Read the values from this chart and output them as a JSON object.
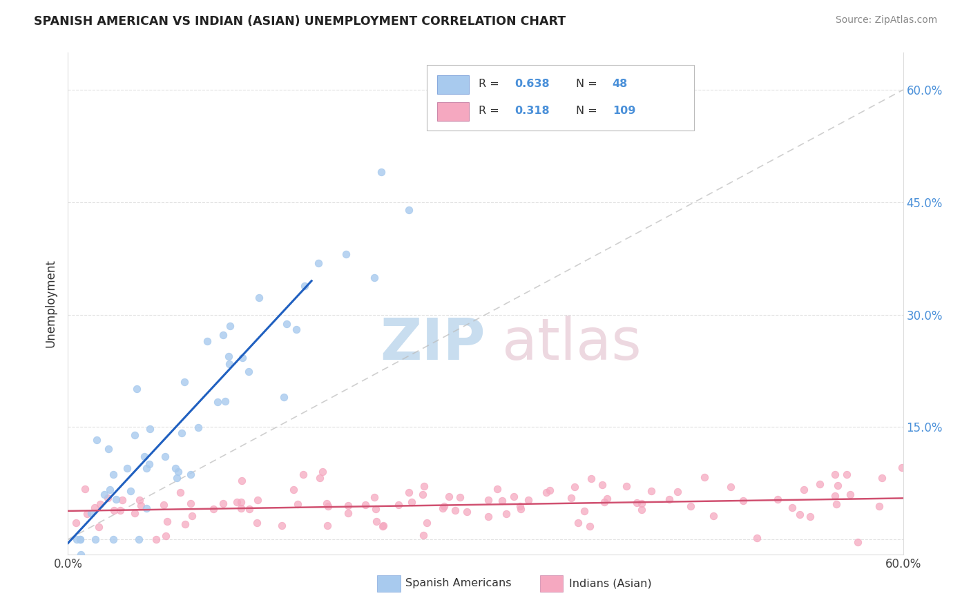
{
  "title": "SPANISH AMERICAN VS INDIAN (ASIAN) UNEMPLOYMENT CORRELATION CHART",
  "source": "Source: ZipAtlas.com",
  "ylabel": "Unemployment",
  "xlim": [
    0.0,
    0.6
  ],
  "ylim": [
    -0.02,
    0.65
  ],
  "r_blue": 0.638,
  "n_blue": 48,
  "r_pink": 0.318,
  "n_pink": 109,
  "blue_color": "#A8CAEE",
  "pink_color": "#F5A8C0",
  "blue_line_color": "#2060C0",
  "pink_line_color": "#D05070",
  "legend_label_blue": "Spanish Americans",
  "legend_label_pink": "Indians (Asian)",
  "background_color": "#FFFFFF",
  "grid_color": "#CCCCCC",
  "ytick_color": "#4A90D9",
  "title_color": "#222222",
  "source_color": "#888888",
  "axis_label_color": "#333333"
}
